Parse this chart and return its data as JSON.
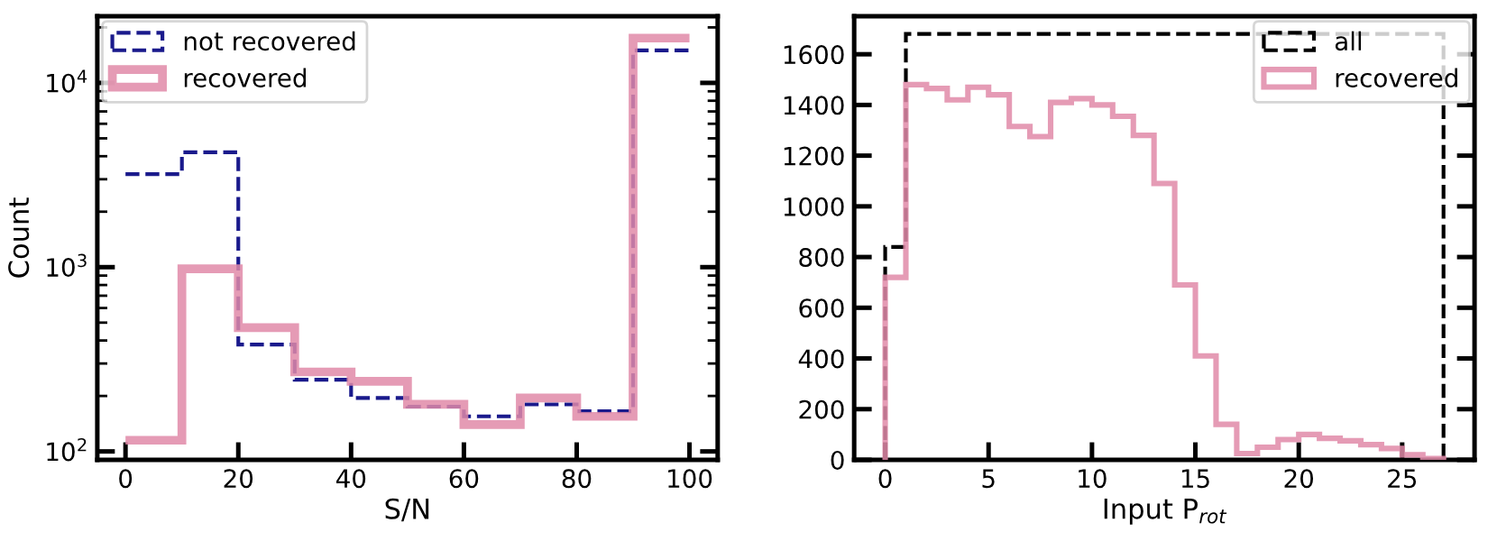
{
  "chart_data": [
    {
      "type": "histogram",
      "xlabel": "S/N",
      "ylabel": "Count",
      "log": "y",
      "bins": [
        0,
        10,
        20,
        30,
        40,
        50,
        60,
        70,
        80,
        90,
        100
      ],
      "series": [
        {
          "name": "not recovered",
          "color": "#1a1a8c",
          "line_style": "dashed",
          "values": [
            3200,
            4200,
            380,
            245,
            195,
            175,
            155,
            180,
            165,
            15000
          ]
        },
        {
          "name": "recovered",
          "color": "#e08aa8",
          "line_style": "solid",
          "values": [
            115,
            980,
            470,
            270,
            240,
            180,
            140,
            195,
            155,
            17500
          ]
        }
      ],
      "xlim": [
        -5,
        105
      ],
      "ylim": [
        90,
        23000
      ],
      "xticks": [
        0,
        20,
        40,
        60,
        80,
        100
      ],
      "yticks": [
        {
          "value": 100,
          "label": "10$^{2}$"
        },
        {
          "value": 1000,
          "label": "10$^{3}$"
        },
        {
          "value": 10000,
          "label": "10$^{4}$"
        }
      ],
      "legend": "top left",
      "grid": false
    },
    {
      "type": "histogram",
      "xlabel": "Input P$_{rot}$",
      "bins": [
        0,
        1,
        2,
        3,
        4,
        5,
        6,
        7,
        8,
        9,
        10,
        11,
        12,
        13,
        14,
        15,
        16,
        17,
        18,
        19,
        20,
        21,
        22,
        23,
        24,
        25,
        26,
        27
      ],
      "series": [
        {
          "name": "all",
          "color": "#000000",
          "line_style": "dashed",
          "values": [
            840,
            1680,
            1680,
            1680,
            1680,
            1680,
            1680,
            1680,
            1680,
            1680,
            1680,
            1680,
            1680,
            1680,
            1680,
            1680,
            1680,
            1680,
            1680,
            1680,
            1680,
            1680,
            1680,
            1680,
            1680,
            1680,
            1680
          ]
        },
        {
          "name": "recovered",
          "color": "#e08aa8",
          "line_style": "solid",
          "values": [
            720,
            1480,
            1465,
            1420,
            1470,
            1440,
            1315,
            1275,
            1410,
            1425,
            1400,
            1355,
            1280,
            1090,
            690,
            410,
            140,
            25,
            50,
            80,
            100,
            85,
            75,
            60,
            45,
            20,
            5
          ]
        }
      ],
      "xlim": [
        -1.5,
        28.5
      ],
      "ylim": [
        0,
        1750
      ],
      "xticks": [
        0,
        5,
        10,
        15,
        20,
        25
      ],
      "yticks": [
        0,
        200,
        400,
        600,
        800,
        1000,
        1200,
        1400,
        1600
      ],
      "legend": "top right",
      "grid": false
    }
  ]
}
